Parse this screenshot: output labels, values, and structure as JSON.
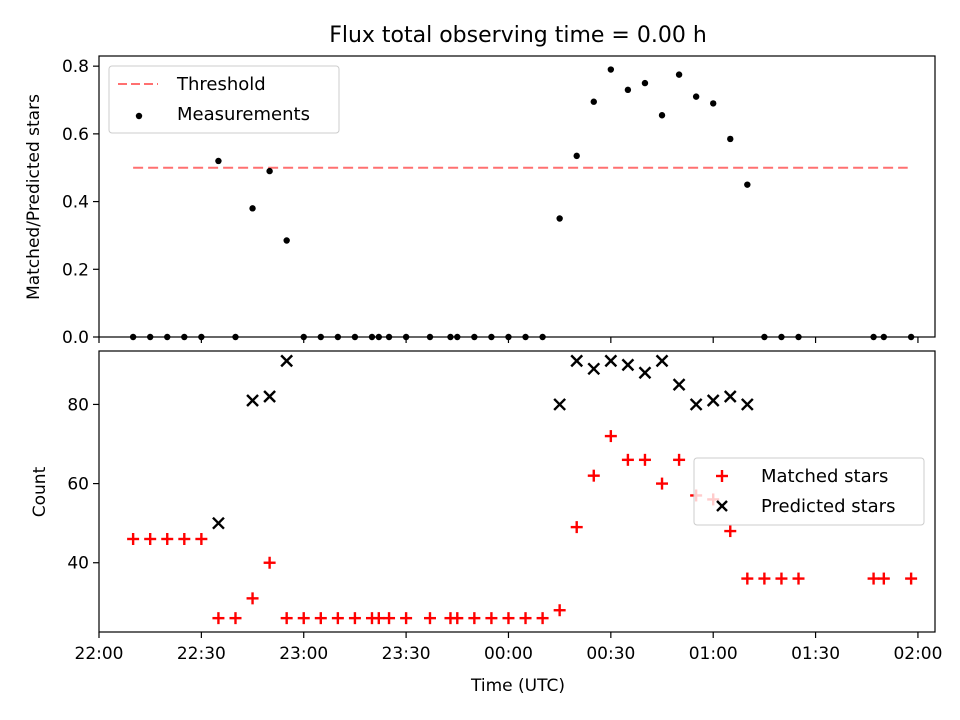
{
  "chart_data": [
    {
      "type": "scatter",
      "title": "Flux total observing time = 0.00 h",
      "xlabel": "",
      "ylabel": "Matched/Predicted stars",
      "ylim": [
        0,
        0.83
      ],
      "yticks": [
        "0.0",
        "0.2",
        "0.4",
        "0.6",
        "0.8"
      ],
      "grid": false,
      "legend_position": "top-left",
      "threshold": {
        "name": "Threshold",
        "value": 0.5,
        "x_range": [
          "22:10",
          "01:57"
        ],
        "color": "#ff7070",
        "style": "dashed"
      },
      "series": [
        {
          "name": "Measurements",
          "marker": "dot",
          "color": "#000000",
          "x": [
            "22:10",
            "22:15",
            "22:20",
            "22:25",
            "22:30",
            "22:35",
            "22:40",
            "22:45",
            "22:50",
            "22:55",
            "23:00",
            "23:05",
            "23:10",
            "23:15",
            "23:20",
            "23:22",
            "23:25",
            "23:30",
            "23:37",
            "23:43",
            "23:45",
            "23:50",
            "23:55",
            "00:00",
            "00:05",
            "00:10",
            "00:15",
            "00:20",
            "00:25",
            "00:30",
            "00:35",
            "00:40",
            "00:45",
            "00:50",
            "00:55",
            "01:00",
            "01:05",
            "01:10",
            "01:15",
            "01:20",
            "01:25",
            "01:47",
            "01:50",
            "01:58"
          ],
          "y": [
            0,
            0,
            0,
            0,
            0,
            0.52,
            0,
            0.38,
            0.49,
            0.285,
            0,
            0,
            0,
            0,
            0,
            0,
            0,
            0,
            0,
            0,
            0,
            0,
            0,
            0,
            0,
            0,
            0.35,
            0.535,
            0.695,
            0.79,
            0.73,
            0.75,
            0.655,
            0.775,
            0.71,
            0.69,
            0.585,
            0.45,
            0,
            0,
            0,
            0,
            0,
            0
          ]
        }
      ]
    },
    {
      "type": "scatter",
      "title": "",
      "xlabel": "Time (UTC)",
      "ylabel": "Count",
      "ylim": [
        22.5,
        93.5
      ],
      "yticks": [
        "40",
        "60",
        "80"
      ],
      "xlim": [
        "22:00",
        "02:05"
      ],
      "xticks": [
        "22:00",
        "22:30",
        "23:00",
        "23:30",
        "00:00",
        "00:30",
        "01:00",
        "01:30",
        "02:00"
      ],
      "grid": false,
      "legend_position": "center-right",
      "series": [
        {
          "name": "Matched stars",
          "marker": "plus",
          "color": "#ff0000",
          "x": [
            "22:10",
            "22:15",
            "22:20",
            "22:25",
            "22:30",
            "22:35",
            "22:40",
            "22:45",
            "22:50",
            "22:55",
            "23:00",
            "23:05",
            "23:10",
            "23:15",
            "23:20",
            "23:22",
            "23:25",
            "23:30",
            "23:37",
            "23:43",
            "23:45",
            "23:50",
            "23:55",
            "00:00",
            "00:05",
            "00:10",
            "00:15",
            "00:20",
            "00:25",
            "00:30",
            "00:35",
            "00:40",
            "00:45",
            "00:50",
            "00:55",
            "01:00",
            "01:05",
            "01:10",
            "01:15",
            "01:20",
            "01:25",
            "01:47",
            "01:50",
            "01:58"
          ],
          "y": [
            46,
            46,
            46,
            46,
            46,
            26,
            26,
            31,
            40,
            26,
            26,
            26,
            26,
            26,
            26,
            26,
            26,
            26,
            26,
            26,
            26,
            26,
            26,
            26,
            26,
            26,
            28,
            49,
            62,
            72,
            66,
            66,
            60,
            66,
            57,
            56,
            48,
            36,
            36,
            36,
            36,
            36,
            36,
            36
          ]
        },
        {
          "name": "Predicted stars",
          "marker": "x",
          "color": "#000000",
          "x": [
            "22:35",
            "22:45",
            "22:50",
            "22:55",
            "00:15",
            "00:20",
            "00:25",
            "00:30",
            "00:35",
            "00:40",
            "00:45",
            "00:50",
            "00:55",
            "01:00",
            "01:05",
            "01:10"
          ],
          "y": [
            50,
            81,
            82,
            91,
            80,
            91,
            89,
            91,
            90,
            88,
            91,
            85,
            80,
            81,
            82,
            80
          ]
        }
      ]
    }
  ]
}
